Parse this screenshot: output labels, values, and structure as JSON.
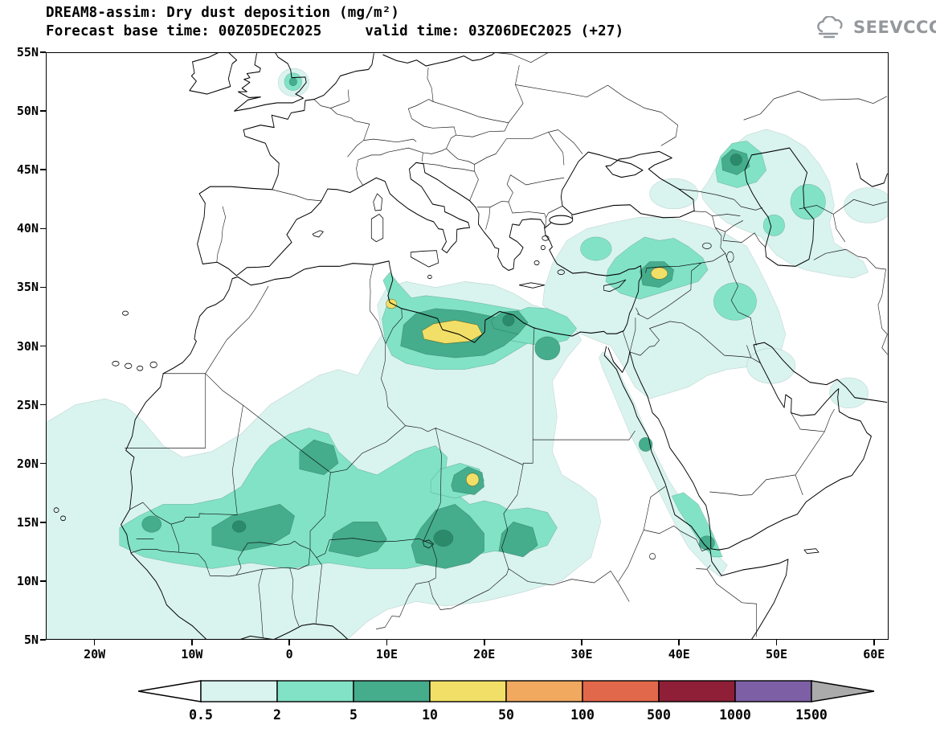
{
  "header": {
    "title_line1": "DREAM8-assim: Dry dust deposition (mg/m²)",
    "title_line2": "Forecast base time: 00Z05DEC2025     valid time: 03Z06DEC2025 (+27)",
    "logo_text": "SEEVCCC"
  },
  "map": {
    "y_axis_labels": [
      "55N",
      "50N",
      "45N",
      "40N",
      "35N",
      "30N",
      "25N",
      "20N",
      "15N",
      "10N",
      "5N"
    ],
    "x_axis_labels": [
      "20W",
      "10W",
      "0",
      "10E",
      "20E",
      "30E",
      "40E",
      "50E",
      "60E"
    ]
  },
  "legend": {
    "values": [
      "0.5",
      "2",
      "5",
      "10",
      "50",
      "100",
      "500",
      "1000",
      "1500"
    ],
    "colors": [
      "#d9f3ee",
      "#82e2c5",
      "#45ac8c",
      "#f2df67",
      "#f0a95f",
      "#e2684b",
      "#8e1f37",
      "#7d5fa5"
    ],
    "arrow_left_color": "#ffffff",
    "arrow_right_color": "#ababab",
    "outline_color": "#000000"
  },
  "colors": {
    "background": "#ffffff",
    "frame": "#000000",
    "logo_gray": "#94989c"
  }
}
